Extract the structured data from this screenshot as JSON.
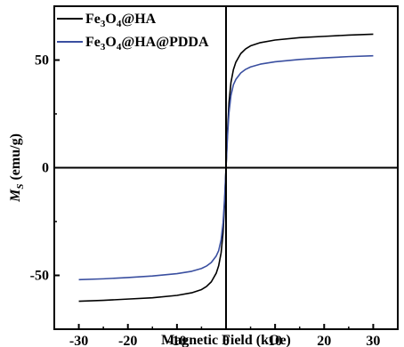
{
  "chart_data": {
    "type": "line",
    "xlabel": "Magnetic Field (kOe)",
    "ylabel_main": "M",
    "ylabel_sub": "S",
    "ylabel_rest": " (emu/g)",
    "xlim": [
      -35,
      35
    ],
    "ylim": [
      -75,
      75
    ],
    "x_ticks": [
      -30,
      -20,
      -10,
      0,
      10,
      20,
      30
    ],
    "x_tick_labels": [
      "-30",
      "-20",
      "-10",
      "0",
      "10",
      "20",
      "30"
    ],
    "y_ticks": [
      -50,
      0,
      50
    ],
    "y_tick_labels": [
      "-50",
      "0",
      "50"
    ],
    "grid": false,
    "legend_position": "top-left",
    "series": [
      {
        "name": "Fe3O4@HA",
        "legend_parts": [
          [
            "Fe",
            false
          ],
          [
            "3",
            true
          ],
          [
            "O",
            false
          ],
          [
            "4",
            true
          ],
          [
            "@HA",
            false
          ]
        ],
        "color": "#000000",
        "ms": 62,
        "x": [
          -30,
          -25,
          -20,
          -15,
          -10,
          -7,
          -5,
          -4,
          -3,
          -2,
          -1.5,
          -1,
          -0.6,
          -0.3,
          0,
          0.3,
          0.6,
          1,
          1.5,
          2,
          3,
          4,
          5,
          7,
          10,
          15,
          20,
          25,
          30
        ],
        "y": [
          -62,
          -61.6,
          -61,
          -60.4,
          -59.3,
          -58.1,
          -56.6,
          -55.2,
          -53,
          -49,
          -45.5,
          -39.5,
          -30,
          -17,
          0,
          17,
          30,
          39.5,
          45.5,
          49,
          53,
          55.2,
          56.6,
          58.1,
          59.3,
          60.4,
          61,
          61.6,
          62
        ]
      },
      {
        "name": "Fe3O4@HA@PDDA",
        "legend_parts": [
          [
            "Fe",
            false
          ],
          [
            "3",
            true
          ],
          [
            "O",
            false
          ],
          [
            "4",
            true
          ],
          [
            "@HA@PDDA",
            false
          ]
        ],
        "color": "#3a4fa0",
        "ms": 52,
        "x": [
          -30,
          -25,
          -20,
          -15,
          -10,
          -7,
          -5,
          -4,
          -3,
          -2,
          -1.5,
          -1,
          -0.6,
          -0.3,
          0,
          0.3,
          0.6,
          1,
          1.5,
          2,
          3,
          4,
          5,
          7,
          10,
          15,
          20,
          25,
          30
        ],
        "y": [
          -52,
          -51.6,
          -51,
          -50.3,
          -49.2,
          -48.1,
          -46.8,
          -45.7,
          -44,
          -41,
          -38.5,
          -33.5,
          -25.5,
          -14.5,
          0,
          14.5,
          25.5,
          33.5,
          38.5,
          41,
          44,
          45.7,
          46.8,
          48.1,
          49.2,
          50.3,
          51,
          51.6,
          52
        ]
      }
    ]
  }
}
